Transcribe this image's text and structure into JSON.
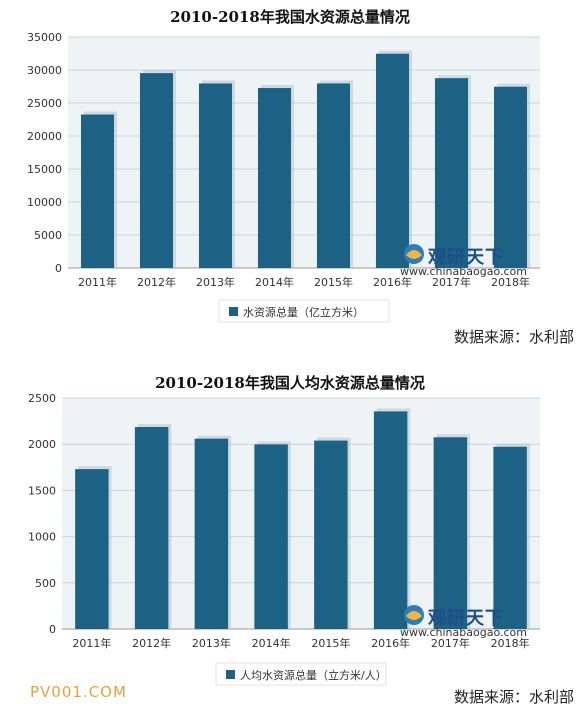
{
  "charts": [
    {
      "chart_data": {
        "type": "bar",
        "title": "2010-2018年我国水资源总量情况",
        "categories": [
          "2011年",
          "2012年",
          "2013年",
          "2014年",
          "2015年",
          "2016年",
          "2017年",
          "2018年"
        ],
        "series": [
          {
            "name": "水资源总量（亿立方米）",
            "values": [
              23256,
              29528,
              27958,
              27267,
              27963,
              32466,
              28761,
              27463
            ],
            "color": "#1b6285"
          }
        ],
        "ylim": [
          0,
          35000
        ],
        "yticks": [
          0,
          5000,
          10000,
          15000,
          20000,
          25000,
          30000,
          35000
        ],
        "legend": "bottom",
        "grid": true
      },
      "source": "数据来源：水利部"
    },
    {
      "chart_data": {
        "type": "bar",
        "title": "2010-2018年我国人均水资源总量情况",
        "categories": [
          "2011年",
          "2012年",
          "2013年",
          "2014年",
          "2015年",
          "2016年",
          "2017年",
          "2018年"
        ],
        "series": [
          {
            "name": "人均水资源总量（立方米/人）",
            "values": [
              1730,
              2186,
              2060,
              1998,
              2039,
              2355,
              2075,
              1972
            ],
            "color": "#1b6285"
          }
        ],
        "ylim": [
          0,
          2500
        ],
        "yticks": [
          0,
          500,
          1000,
          1500,
          2000,
          2500
        ],
        "legend": "bottom",
        "grid": true
      },
      "source": "数据来源：水利部"
    }
  ],
  "watermark": {
    "brand": "观研天下",
    "url": "www.chinabaogao.com"
  },
  "footer_mark": "PV001.COM"
}
